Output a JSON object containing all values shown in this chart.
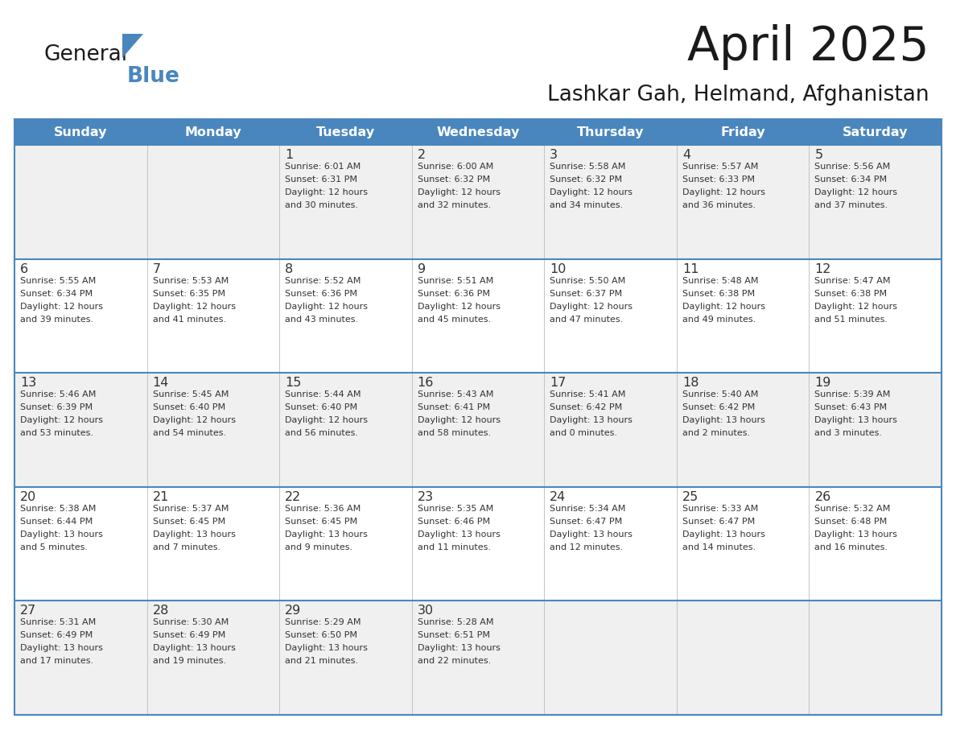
{
  "title": "April 2025",
  "subtitle": "Lashkar Gah, Helmand, Afghanistan",
  "header_bg_color": "#4a86be",
  "header_text_color": "#ffffff",
  "cell_bg_odd": "#f0f0f0",
  "cell_bg_even": "#ffffff",
  "border_color": "#4a86be",
  "text_color": "#333333",
  "day_names": [
    "Sunday",
    "Monday",
    "Tuesday",
    "Wednesday",
    "Thursday",
    "Friday",
    "Saturday"
  ],
  "weeks": [
    [
      {
        "day": "",
        "sunrise": "",
        "sunset": "",
        "daylight": ""
      },
      {
        "day": "",
        "sunrise": "",
        "sunset": "",
        "daylight": ""
      },
      {
        "day": "1",
        "sunrise": "Sunrise: 6:01 AM",
        "sunset": "Sunset: 6:31 PM",
        "daylight": "Daylight: 12 hours\nand 30 minutes."
      },
      {
        "day": "2",
        "sunrise": "Sunrise: 6:00 AM",
        "sunset": "Sunset: 6:32 PM",
        "daylight": "Daylight: 12 hours\nand 32 minutes."
      },
      {
        "day": "3",
        "sunrise": "Sunrise: 5:58 AM",
        "sunset": "Sunset: 6:32 PM",
        "daylight": "Daylight: 12 hours\nand 34 minutes."
      },
      {
        "day": "4",
        "sunrise": "Sunrise: 5:57 AM",
        "sunset": "Sunset: 6:33 PM",
        "daylight": "Daylight: 12 hours\nand 36 minutes."
      },
      {
        "day": "5",
        "sunrise": "Sunrise: 5:56 AM",
        "sunset": "Sunset: 6:34 PM",
        "daylight": "Daylight: 12 hours\nand 37 minutes."
      }
    ],
    [
      {
        "day": "6",
        "sunrise": "Sunrise: 5:55 AM",
        "sunset": "Sunset: 6:34 PM",
        "daylight": "Daylight: 12 hours\nand 39 minutes."
      },
      {
        "day": "7",
        "sunrise": "Sunrise: 5:53 AM",
        "sunset": "Sunset: 6:35 PM",
        "daylight": "Daylight: 12 hours\nand 41 minutes."
      },
      {
        "day": "8",
        "sunrise": "Sunrise: 5:52 AM",
        "sunset": "Sunset: 6:36 PM",
        "daylight": "Daylight: 12 hours\nand 43 minutes."
      },
      {
        "day": "9",
        "sunrise": "Sunrise: 5:51 AM",
        "sunset": "Sunset: 6:36 PM",
        "daylight": "Daylight: 12 hours\nand 45 minutes."
      },
      {
        "day": "10",
        "sunrise": "Sunrise: 5:50 AM",
        "sunset": "Sunset: 6:37 PM",
        "daylight": "Daylight: 12 hours\nand 47 minutes."
      },
      {
        "day": "11",
        "sunrise": "Sunrise: 5:48 AM",
        "sunset": "Sunset: 6:38 PM",
        "daylight": "Daylight: 12 hours\nand 49 minutes."
      },
      {
        "day": "12",
        "sunrise": "Sunrise: 5:47 AM",
        "sunset": "Sunset: 6:38 PM",
        "daylight": "Daylight: 12 hours\nand 51 minutes."
      }
    ],
    [
      {
        "day": "13",
        "sunrise": "Sunrise: 5:46 AM",
        "sunset": "Sunset: 6:39 PM",
        "daylight": "Daylight: 12 hours\nand 53 minutes."
      },
      {
        "day": "14",
        "sunrise": "Sunrise: 5:45 AM",
        "sunset": "Sunset: 6:40 PM",
        "daylight": "Daylight: 12 hours\nand 54 minutes."
      },
      {
        "day": "15",
        "sunrise": "Sunrise: 5:44 AM",
        "sunset": "Sunset: 6:40 PM",
        "daylight": "Daylight: 12 hours\nand 56 minutes."
      },
      {
        "day": "16",
        "sunrise": "Sunrise: 5:43 AM",
        "sunset": "Sunset: 6:41 PM",
        "daylight": "Daylight: 12 hours\nand 58 minutes."
      },
      {
        "day": "17",
        "sunrise": "Sunrise: 5:41 AM",
        "sunset": "Sunset: 6:42 PM",
        "daylight": "Daylight: 13 hours\nand 0 minutes."
      },
      {
        "day": "18",
        "sunrise": "Sunrise: 5:40 AM",
        "sunset": "Sunset: 6:42 PM",
        "daylight": "Daylight: 13 hours\nand 2 minutes."
      },
      {
        "day": "19",
        "sunrise": "Sunrise: 5:39 AM",
        "sunset": "Sunset: 6:43 PM",
        "daylight": "Daylight: 13 hours\nand 3 minutes."
      }
    ],
    [
      {
        "day": "20",
        "sunrise": "Sunrise: 5:38 AM",
        "sunset": "Sunset: 6:44 PM",
        "daylight": "Daylight: 13 hours\nand 5 minutes."
      },
      {
        "day": "21",
        "sunrise": "Sunrise: 5:37 AM",
        "sunset": "Sunset: 6:45 PM",
        "daylight": "Daylight: 13 hours\nand 7 minutes."
      },
      {
        "day": "22",
        "sunrise": "Sunrise: 5:36 AM",
        "sunset": "Sunset: 6:45 PM",
        "daylight": "Daylight: 13 hours\nand 9 minutes."
      },
      {
        "day": "23",
        "sunrise": "Sunrise: 5:35 AM",
        "sunset": "Sunset: 6:46 PM",
        "daylight": "Daylight: 13 hours\nand 11 minutes."
      },
      {
        "day": "24",
        "sunrise": "Sunrise: 5:34 AM",
        "sunset": "Sunset: 6:47 PM",
        "daylight": "Daylight: 13 hours\nand 12 minutes."
      },
      {
        "day": "25",
        "sunrise": "Sunrise: 5:33 AM",
        "sunset": "Sunset: 6:47 PM",
        "daylight": "Daylight: 13 hours\nand 14 minutes."
      },
      {
        "day": "26",
        "sunrise": "Sunrise: 5:32 AM",
        "sunset": "Sunset: 6:48 PM",
        "daylight": "Daylight: 13 hours\nand 16 minutes."
      }
    ],
    [
      {
        "day": "27",
        "sunrise": "Sunrise: 5:31 AM",
        "sunset": "Sunset: 6:49 PM",
        "daylight": "Daylight: 13 hours\nand 17 minutes."
      },
      {
        "day": "28",
        "sunrise": "Sunrise: 5:30 AM",
        "sunset": "Sunset: 6:49 PM",
        "daylight": "Daylight: 13 hours\nand 19 minutes."
      },
      {
        "day": "29",
        "sunrise": "Sunrise: 5:29 AM",
        "sunset": "Sunset: 6:50 PM",
        "daylight": "Daylight: 13 hours\nand 21 minutes."
      },
      {
        "day": "30",
        "sunrise": "Sunrise: 5:28 AM",
        "sunset": "Sunset: 6:51 PM",
        "daylight": "Daylight: 13 hours\nand 22 minutes."
      },
      {
        "day": "",
        "sunrise": "",
        "sunset": "",
        "daylight": ""
      },
      {
        "day": "",
        "sunrise": "",
        "sunset": "",
        "daylight": ""
      },
      {
        "day": "",
        "sunrise": "",
        "sunset": "",
        "daylight": ""
      }
    ]
  ]
}
